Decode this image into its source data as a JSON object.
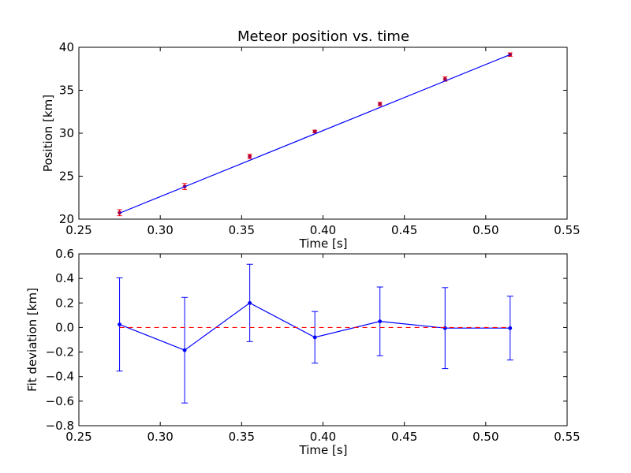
{
  "chart_data": [
    {
      "type": "scatter",
      "title": "Meteor position vs. time",
      "xlabel": "Time [s]",
      "ylabel": "Position [km]",
      "xlim": [
        0.25,
        0.55
      ],
      "ylim": [
        20,
        40
      ],
      "xticks": [
        "0.25",
        "0.30",
        "0.35",
        "0.40",
        "0.45",
        "0.50",
        "0.55"
      ],
      "yticks": [
        "20",
        "25",
        "30",
        "35",
        "40"
      ],
      "grid": false,
      "series": [
        {
          "kind": "errorbar-points",
          "color": "#ff0000",
          "x": [
            0.275,
            0.315,
            0.355,
            0.395,
            0.435,
            0.475,
            0.515
          ],
          "y": [
            20.75,
            23.8,
            27.3,
            30.2,
            33.4,
            36.3,
            39.15
          ],
          "yerr": [
            0.35,
            0.35,
            0.25,
            0.15,
            0.2,
            0.25,
            0.2
          ]
        },
        {
          "kind": "fit-line",
          "color": "#0000ff",
          "x": [
            0.275,
            0.515
          ],
          "y": [
            20.7,
            39.15
          ]
        }
      ]
    },
    {
      "type": "line",
      "title": "",
      "xlabel": "Time [s]",
      "ylabel": "Fit deviation [km]",
      "xlim": [
        0.25,
        0.55
      ],
      "ylim": [
        -0.8,
        0.6
      ],
      "xticks": [
        "0.25",
        "0.30",
        "0.35",
        "0.40",
        "0.45",
        "0.50",
        "0.55"
      ],
      "yticks": [
        "−0.8",
        "−0.6",
        "−0.4",
        "−0.2",
        "0.0",
        "0.2",
        "0.4",
        "0.6"
      ],
      "grid": false,
      "series": [
        {
          "kind": "errorbar-line",
          "color": "#0000ff",
          "x": [
            0.275,
            0.315,
            0.355,
            0.395,
            0.435,
            0.475,
            0.515
          ],
          "y": [
            0.025,
            -0.185,
            0.2,
            -0.08,
            0.05,
            -0.005,
            -0.005
          ],
          "yerr": [
            0.38,
            0.43,
            0.315,
            0.21,
            0.28,
            0.33,
            0.26
          ]
        },
        {
          "kind": "zero-line",
          "color": "#ff0000",
          "linestyle": "dashed",
          "x": [
            0.275,
            0.515
          ],
          "y": [
            0,
            0
          ]
        }
      ]
    }
  ]
}
